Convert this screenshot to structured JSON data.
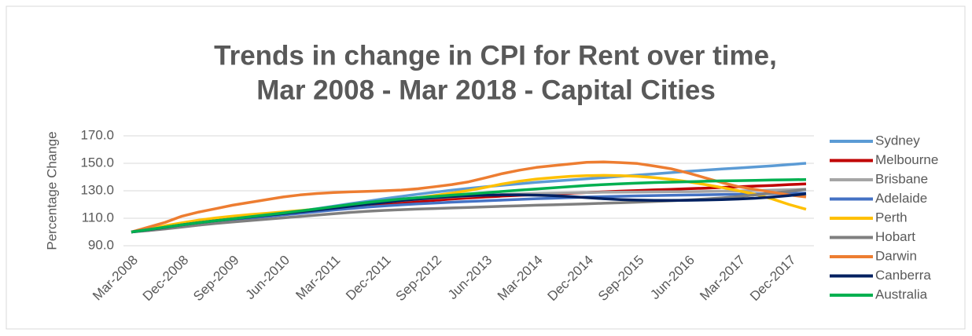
{
  "chart_data": {
    "type": "line",
    "title": [
      "Trends in change in CPI for Rent over time,",
      "Mar 2008 - Mar 2018 - Capital Cities"
    ],
    "y_label": "Percentage Change",
    "categories": [
      "Mar-2008",
      null,
      null,
      "Dec-2008",
      null,
      null,
      "Sep-2009",
      null,
      null,
      "Jun-2010",
      null,
      null,
      "Mar-2011",
      null,
      null,
      "Dec-2011",
      null,
      null,
      "Sep-2012",
      null,
      null,
      "Jun-2013",
      null,
      null,
      "Mar-2014",
      null,
      null,
      "Dec-2014",
      null,
      null,
      "Sep-2015",
      null,
      null,
      "Jun-2016",
      null,
      null,
      "Mar-2017",
      null,
      null,
      "Dec-2017",
      null
    ],
    "ylim": [
      90,
      170
    ],
    "yticks": [
      {
        "value": 90,
        "label": "90.0"
      },
      {
        "value": 110,
        "label": "110.0"
      },
      {
        "value": 130,
        "label": "130.0"
      },
      {
        "value": 150,
        "label": "150.0"
      },
      {
        "value": 170,
        "label": "170.0"
      }
    ],
    "grid": true,
    "legend": "right",
    "series": [
      {
        "name": "Sydney",
        "color": "#5b9bd5",
        "values": [
          100.0,
          101.8,
          103.5,
          105.2,
          106.8,
          108.2,
          109.5,
          110.8,
          112.2,
          113.7,
          115.3,
          117.0,
          118.8,
          120.6,
          122.4,
          124.2,
          125.9,
          127.5,
          129.0,
          130.4,
          131.7,
          132.9,
          134.0,
          135.1,
          136.1,
          137.0,
          137.9,
          138.7,
          139.6,
          140.5,
          141.4,
          142.3,
          143.2,
          144.1,
          145.0,
          145.8,
          146.6,
          147.4,
          148.2,
          149.1,
          150.0
        ]
      },
      {
        "name": "Melbourne",
        "color": "#c00000",
        "values": [
          100.0,
          101.5,
          103.2,
          104.8,
          106.3,
          107.6,
          108.9,
          110.2,
          111.5,
          112.8,
          114.1,
          115.4,
          116.7,
          117.9,
          119.0,
          120.1,
          121.2,
          122.2,
          123.1,
          124.0,
          124.8,
          125.5,
          126.1,
          126.7,
          127.2,
          127.7,
          128.2,
          128.7,
          129.2,
          129.7,
          130.2,
          130.6,
          131.0,
          131.5,
          131.9,
          132.4,
          132.9,
          133.4,
          133.9,
          134.5,
          135.0
        ]
      },
      {
        "name": "Brisbane",
        "color": "#a5a5a5",
        "values": [
          100.0,
          101.6,
          103.4,
          105.2,
          106.9,
          108.4,
          109.8,
          111.1,
          112.4,
          113.7,
          115.0,
          116.4,
          117.8,
          119.2,
          120.5,
          121.7,
          122.8,
          123.8,
          124.7,
          125.5,
          126.2,
          126.8,
          127.3,
          127.7,
          128.0,
          128.3,
          128.5,
          128.7,
          128.9,
          129.0,
          129.1,
          129.2,
          129.3,
          129.4,
          129.5,
          129.7,
          129.9,
          130.2,
          130.5,
          130.8,
          131.1
        ]
      },
      {
        "name": "Adelaide",
        "color": "#4472c4",
        "values": [
          100.0,
          101.4,
          103.0,
          104.6,
          106.1,
          107.5,
          108.8,
          110.0,
          111.2,
          112.4,
          113.6,
          114.8,
          116.0,
          117.1,
          118.1,
          119.0,
          119.8,
          120.5,
          121.1,
          121.7,
          122.2,
          122.7,
          123.2,
          123.7,
          124.2,
          124.6,
          125.0,
          125.4,
          125.7,
          126.0,
          126.3,
          126.5,
          126.7,
          126.9,
          127.1,
          127.3,
          127.5,
          127.7,
          127.9,
          128.1,
          128.3
        ]
      },
      {
        "name": "Perth",
        "color": "#ffc000",
        "values": [
          100.0,
          102.2,
          104.5,
          106.7,
          108.6,
          110.2,
          111.5,
          112.6,
          113.6,
          114.6,
          115.6,
          116.6,
          117.7,
          118.9,
          120.3,
          121.8,
          123.4,
          125.0,
          126.6,
          128.3,
          130.2,
          132.5,
          135.0,
          137.0,
          138.5,
          139.6,
          140.5,
          141.0,
          141.2,
          141.0,
          140.5,
          139.6,
          138.3,
          136.6,
          134.6,
          132.4,
          130.0,
          127.4,
          124.0,
          120.0,
          116.5
        ]
      },
      {
        "name": "Hobart",
        "color": "#7f7f7f",
        "values": [
          100.0,
          101.0,
          102.2,
          103.6,
          105.0,
          106.2,
          107.3,
          108.3,
          109.3,
          110.3,
          111.3,
          112.3,
          113.3,
          114.3,
          115.1,
          115.7,
          116.2,
          116.7,
          117.1,
          117.5,
          117.9,
          118.3,
          118.7,
          119.1,
          119.5,
          119.8,
          120.1,
          120.5,
          120.9,
          121.3,
          121.7,
          122.2,
          122.7,
          123.3,
          124.0,
          124.8,
          125.8,
          127.0,
          128.3,
          129.6,
          131.0
        ]
      },
      {
        "name": "Darwin",
        "color": "#ed7d31",
        "values": [
          100.0,
          103.5,
          107.0,
          111.5,
          114.5,
          117.0,
          119.5,
          121.5,
          123.5,
          125.5,
          127.0,
          128.0,
          128.7,
          129.2,
          129.6,
          130.0,
          130.5,
          131.5,
          133.0,
          134.5,
          136.5,
          139.5,
          142.5,
          145.0,
          147.0,
          148.3,
          149.5,
          150.7,
          151.0,
          150.5,
          149.8,
          148.0,
          146.0,
          143.0,
          139.5,
          136.0,
          133.0,
          131.0,
          129.0,
          127.0,
          125.5
        ]
      },
      {
        "name": "Canberra",
        "color": "#002060",
        "values": [
          100.0,
          101.6,
          103.4,
          105.2,
          106.8,
          108.2,
          109.5,
          110.8,
          112.1,
          113.4,
          114.7,
          116.0,
          117.4,
          118.8,
          120.2,
          121.6,
          122.9,
          124.0,
          125.0,
          125.8,
          126.4,
          126.8,
          127.0,
          127.0,
          126.8,
          126.4,
          125.8,
          125.0,
          124.2,
          123.6,
          123.2,
          123.0,
          123.0,
          123.1,
          123.3,
          123.6,
          124.0,
          124.6,
          125.4,
          126.5,
          127.8
        ]
      },
      {
        "name": "Australia",
        "color": "#00b050",
        "values": [
          100.0,
          101.7,
          103.5,
          105.2,
          106.8,
          108.2,
          109.6,
          111.0,
          112.4,
          113.8,
          115.3,
          116.8,
          118.4,
          120.0,
          121.5,
          122.8,
          124.0,
          125.0,
          125.9,
          126.8,
          127.7,
          128.6,
          129.5,
          130.4,
          131.3,
          132.2,
          133.0,
          133.8,
          134.5,
          135.1,
          135.6,
          136.0,
          136.3,
          136.6,
          136.9,
          137.2,
          137.4,
          137.6,
          137.8,
          138.0,
          138.2
        ]
      }
    ]
  }
}
